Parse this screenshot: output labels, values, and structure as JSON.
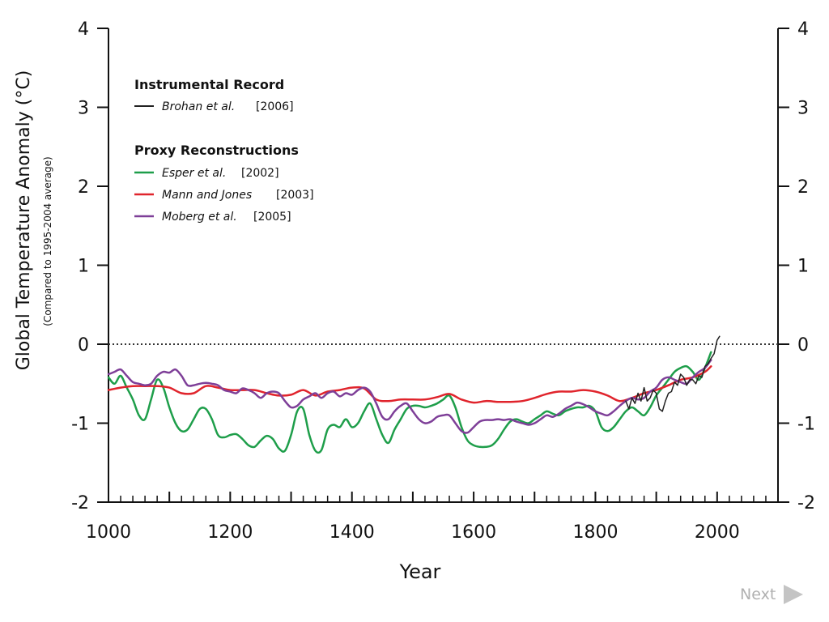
{
  "chart_data": {
    "type": "line",
    "xlabel": "Year",
    "ylabel": "Global Temperature Anomaly (°C)",
    "ylabel_sub": "(Compared to 1995-2004 average)",
    "xlim": [
      1000,
      2100
    ],
    "ylim": [
      -2,
      4
    ],
    "x_ticks": [
      "1000",
      "1200",
      "1400",
      "1600",
      "1800",
      "2000"
    ],
    "y_ticks_left": [
      "4",
      "3",
      "2",
      "1",
      "0",
      "-1",
      "-2"
    ],
    "y_ticks_right": [
      "4",
      "3",
      "2",
      "1",
      "0",
      "-1",
      "-2"
    ],
    "reference_line": {
      "y": 0,
      "style": "dotted"
    },
    "legend": {
      "placement": "top-left",
      "group_instrumental": "Instrumental Record",
      "group_proxy": "Proxy Reconstructions",
      "entries": [
        {
          "name": "Brohan et al.",
          "year": "[2006]",
          "color": "#222222"
        },
        {
          "name": "Esper et al.",
          "year": "[2002]",
          "color": "#1e9e4a"
        },
        {
          "name": "Mann and Jones",
          "year": "[2003]",
          "color": "#e0242c"
        },
        {
          "name": "Moberg et al.",
          "year": "[2005]",
          "color": "#7e3f98"
        }
      ]
    },
    "series": [
      {
        "name": "Esper et al. [2002]",
        "color": "#1e9e4a",
        "x": [
          1000,
          1010,
          1020,
          1030,
          1040,
          1050,
          1060,
          1070,
          1080,
          1090,
          1100,
          1110,
          1120,
          1130,
          1140,
          1150,
          1160,
          1170,
          1180,
          1190,
          1200,
          1210,
          1220,
          1230,
          1240,
          1250,
          1260,
          1270,
          1280,
          1290,
          1300,
          1310,
          1320,
          1330,
          1340,
          1350,
          1360,
          1370,
          1380,
          1390,
          1400,
          1410,
          1420,
          1430,
          1440,
          1450,
          1460,
          1470,
          1480,
          1490,
          1500,
          1510,
          1520,
          1530,
          1540,
          1550,
          1560,
          1570,
          1580,
          1590,
          1600,
          1610,
          1620,
          1630,
          1640,
          1650,
          1660,
          1670,
          1680,
          1690,
          1700,
          1710,
          1720,
          1730,
          1740,
          1750,
          1760,
          1770,
          1780,
          1790,
          1800,
          1810,
          1820,
          1830,
          1840,
          1850,
          1860,
          1870,
          1880,
          1890,
          1900,
          1910,
          1920,
          1930,
          1940,
          1950,
          1960,
          1970,
          1980,
          1990
        ],
        "y": [
          -0.42,
          -0.5,
          -0.4,
          -0.55,
          -0.7,
          -0.9,
          -0.95,
          -0.7,
          -0.45,
          -0.55,
          -0.8,
          -1.0,
          -1.1,
          -1.08,
          -0.95,
          -0.82,
          -0.82,
          -0.95,
          -1.15,
          -1.18,
          -1.15,
          -1.14,
          -1.2,
          -1.28,
          -1.3,
          -1.22,
          -1.16,
          -1.2,
          -1.32,
          -1.35,
          -1.15,
          -0.85,
          -0.82,
          -1.15,
          -1.35,
          -1.34,
          -1.08,
          -1.02,
          -1.05,
          -0.95,
          -1.05,
          -1.0,
          -0.85,
          -0.75,
          -0.95,
          -1.15,
          -1.25,
          -1.08,
          -0.95,
          -0.82,
          -0.78,
          -0.78,
          -0.8,
          -0.78,
          -0.75,
          -0.7,
          -0.65,
          -0.8,
          -1.05,
          -1.22,
          -1.28,
          -1.3,
          -1.3,
          -1.28,
          -1.2,
          -1.08,
          -0.98,
          -0.95,
          -0.98,
          -1.0,
          -0.95,
          -0.9,
          -0.85,
          -0.88,
          -0.9,
          -0.85,
          -0.82,
          -0.8,
          -0.8,
          -0.78,
          -0.85,
          -1.05,
          -1.1,
          -1.05,
          -0.95,
          -0.85,
          -0.8,
          -0.85,
          -0.9,
          -0.8,
          -0.65,
          -0.55,
          -0.45,
          -0.35,
          -0.3,
          -0.28,
          -0.35,
          -0.45,
          -0.3,
          -0.1
        ]
      },
      {
        "name": "Mann and Jones [2003]",
        "color": "#e0242c",
        "x": [
          1000,
          1020,
          1040,
          1060,
          1080,
          1100,
          1120,
          1140,
          1160,
          1180,
          1200,
          1220,
          1240,
          1260,
          1280,
          1300,
          1320,
          1340,
          1360,
          1380,
          1400,
          1420,
          1440,
          1460,
          1480,
          1500,
          1520,
          1540,
          1560,
          1580,
          1600,
          1620,
          1640,
          1660,
          1680,
          1700,
          1720,
          1740,
          1760,
          1780,
          1800,
          1820,
          1840,
          1860,
          1880,
          1900,
          1920,
          1940,
          1960,
          1980,
          1990
        ],
        "y": [
          -0.58,
          -0.55,
          -0.53,
          -0.53,
          -0.53,
          -0.55,
          -0.62,
          -0.62,
          -0.53,
          -0.55,
          -0.58,
          -0.58,
          -0.58,
          -0.62,
          -0.65,
          -0.64,
          -0.58,
          -0.65,
          -0.6,
          -0.58,
          -0.55,
          -0.56,
          -0.7,
          -0.72,
          -0.7,
          -0.7,
          -0.7,
          -0.67,
          -0.63,
          -0.7,
          -0.74,
          -0.72,
          -0.73,
          -0.73,
          -0.72,
          -0.68,
          -0.63,
          -0.6,
          -0.6,
          -0.58,
          -0.6,
          -0.65,
          -0.72,
          -0.68,
          -0.62,
          -0.58,
          -0.52,
          -0.45,
          -0.42,
          -0.35,
          -0.28
        ]
      },
      {
        "name": "Moberg et al. [2005]",
        "color": "#7e3f98",
        "x": [
          1000,
          1010,
          1020,
          1030,
          1040,
          1050,
          1060,
          1070,
          1080,
          1090,
          1100,
          1110,
          1120,
          1130,
          1140,
          1150,
          1160,
          1170,
          1180,
          1190,
          1200,
          1210,
          1220,
          1230,
          1240,
          1250,
          1260,
          1270,
          1280,
          1290,
          1300,
          1310,
          1320,
          1330,
          1340,
          1350,
          1360,
          1370,
          1380,
          1390,
          1400,
          1410,
          1420,
          1430,
          1440,
          1450,
          1460,
          1470,
          1480,
          1490,
          1500,
          1510,
          1520,
          1530,
          1540,
          1550,
          1560,
          1570,
          1580,
          1590,
          1600,
          1610,
          1620,
          1630,
          1640,
          1650,
          1660,
          1670,
          1680,
          1690,
          1700,
          1710,
          1720,
          1730,
          1740,
          1750,
          1760,
          1770,
          1780,
          1790,
          1800,
          1810,
          1820,
          1830,
          1840,
          1850,
          1860,
          1870,
          1880,
          1890,
          1900,
          1910,
          1920,
          1930,
          1940,
          1950,
          1960,
          1970,
          1980,
          1990
        ],
        "y": [
          -0.38,
          -0.35,
          -0.32,
          -0.4,
          -0.48,
          -0.5,
          -0.52,
          -0.5,
          -0.4,
          -0.35,
          -0.36,
          -0.32,
          -0.4,
          -0.52,
          -0.52,
          -0.5,
          -0.49,
          -0.5,
          -0.52,
          -0.58,
          -0.6,
          -0.62,
          -0.56,
          -0.58,
          -0.62,
          -0.68,
          -0.62,
          -0.6,
          -0.62,
          -0.72,
          -0.8,
          -0.78,
          -0.7,
          -0.66,
          -0.62,
          -0.68,
          -0.62,
          -0.6,
          -0.66,
          -0.62,
          -0.64,
          -0.58,
          -0.55,
          -0.6,
          -0.75,
          -0.92,
          -0.95,
          -0.85,
          -0.78,
          -0.75,
          -0.85,
          -0.95,
          -1.0,
          -0.98,
          -0.92,
          -0.9,
          -0.9,
          -1.0,
          -1.1,
          -1.12,
          -1.05,
          -0.98,
          -0.96,
          -0.96,
          -0.95,
          -0.96,
          -0.95,
          -0.98,
          -1.0,
          -1.02,
          -1.0,
          -0.95,
          -0.9,
          -0.92,
          -0.88,
          -0.82,
          -0.78,
          -0.74,
          -0.76,
          -0.8,
          -0.85,
          -0.88,
          -0.9,
          -0.85,
          -0.78,
          -0.72,
          -0.68,
          -0.7,
          -0.68,
          -0.6,
          -0.55,
          -0.45,
          -0.42,
          -0.45,
          -0.48,
          -0.5,
          -0.42,
          -0.35,
          -0.3,
          -0.2
        ]
      },
      {
        "name": "Brohan et al. [2006]",
        "color": "#222222",
        "x": [
          1850,
          1855,
          1860,
          1865,
          1870,
          1875,
          1880,
          1885,
          1890,
          1895,
          1900,
          1905,
          1910,
          1915,
          1920,
          1925,
          1930,
          1935,
          1940,
          1945,
          1950,
          1955,
          1960,
          1965,
          1970,
          1975,
          1980,
          1985,
          1990,
          1995,
          2000,
          2004
        ],
        "y": [
          -0.72,
          -0.82,
          -0.68,
          -0.75,
          -0.62,
          -0.72,
          -0.55,
          -0.72,
          -0.68,
          -0.58,
          -0.62,
          -0.82,
          -0.85,
          -0.72,
          -0.62,
          -0.6,
          -0.48,
          -0.52,
          -0.38,
          -0.42,
          -0.52,
          -0.45,
          -0.45,
          -0.5,
          -0.4,
          -0.42,
          -0.28,
          -0.25,
          -0.18,
          -0.12,
          0.05,
          0.1
        ]
      }
    ]
  },
  "nav": {
    "next_label": "Next"
  }
}
